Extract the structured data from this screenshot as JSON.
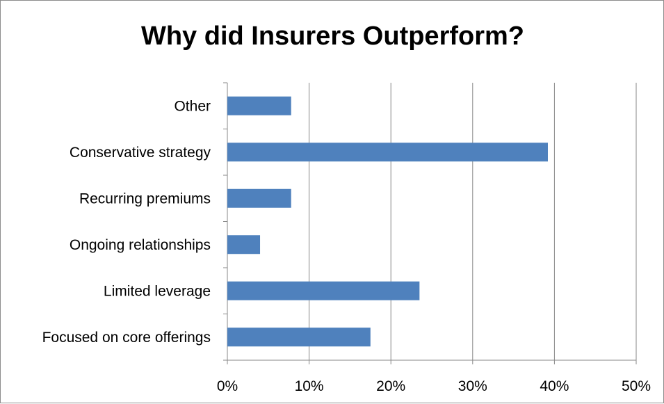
{
  "chart_data": {
    "type": "bar",
    "orientation": "horizontal",
    "title": "Why did Insurers Outperform?",
    "categories": [
      "Focused on core offerings",
      "Limited leverage",
      "Ongoing relationships",
      "Recurring premiums",
      "Conservative strategy",
      "Other"
    ],
    "values": [
      17.5,
      23.5,
      4.0,
      7.8,
      39.2,
      7.8
    ],
    "xlim": [
      0,
      50
    ],
    "xticks": [
      0,
      10,
      20,
      30,
      40,
      50
    ],
    "xtick_labels": [
      "0%",
      "10%",
      "20%",
      "30%",
      "40%",
      "50%"
    ],
    "xlabel": "",
    "ylabel": "",
    "grid": "vertical",
    "legend": "none",
    "bar_color": "#4f81bd",
    "grid_color": "#878787"
  }
}
